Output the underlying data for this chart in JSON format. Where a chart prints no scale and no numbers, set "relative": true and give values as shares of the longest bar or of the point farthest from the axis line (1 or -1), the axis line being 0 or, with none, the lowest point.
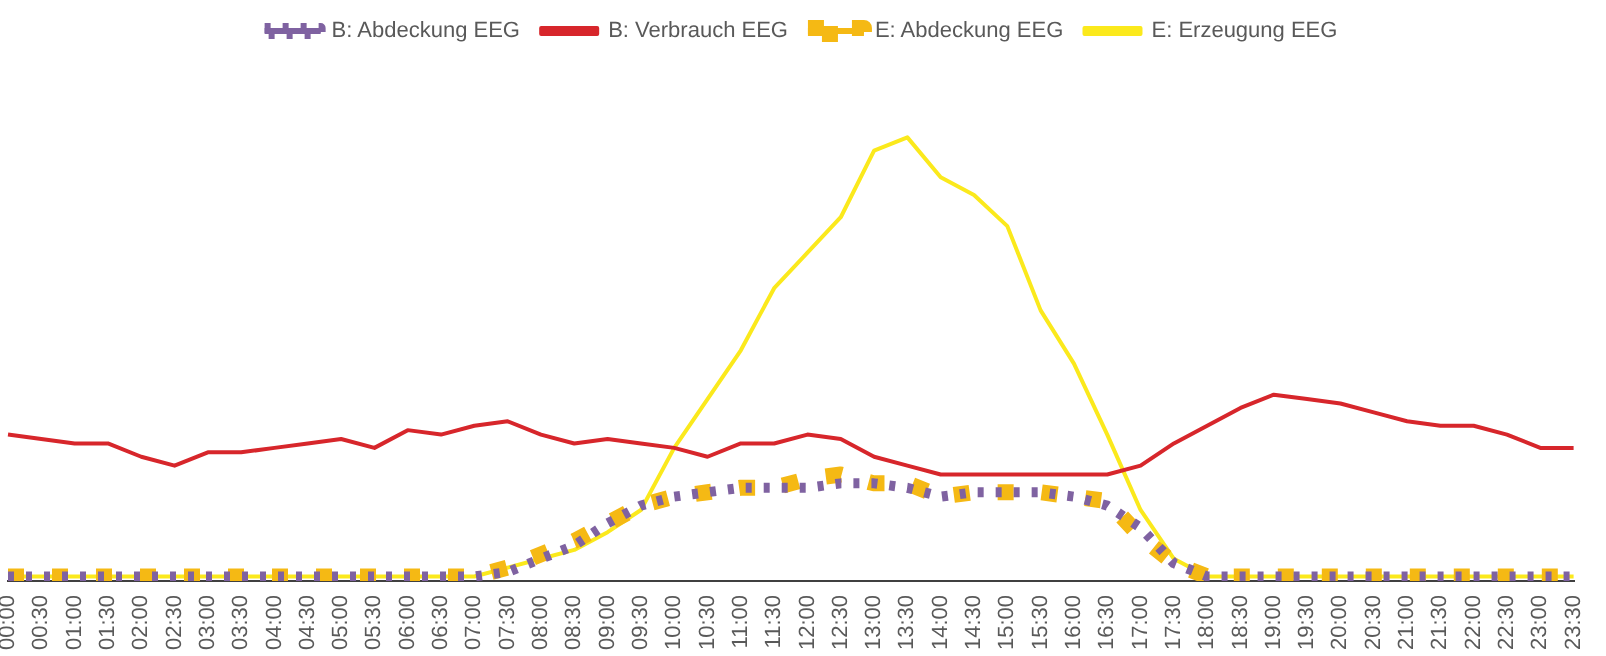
{
  "chart_data": {
    "type": "line",
    "relative": true,
    "legend": "top",
    "grid": false,
    "marker": "none",
    "categories": [
      "00:00",
      "00:30",
      "01:00",
      "01:30",
      "02:00",
      "02:30",
      "03:00",
      "03:30",
      "04:00",
      "04:30",
      "05:00",
      "05:30",
      "06:00",
      "06:30",
      "07:00",
      "07:30",
      "08:00",
      "08:30",
      "09:00",
      "09:30",
      "10:00",
      "10:30",
      "11:00",
      "11:30",
      "12:00",
      "12:30",
      "13:00",
      "13:30",
      "14:00",
      "14:30",
      "15:00",
      "15:30",
      "16:00",
      "16:30",
      "17:00",
      "17:30",
      "18:00",
      "18:30",
      "19:00",
      "19:30",
      "20:00",
      "20:30",
      "21:00",
      "21:30",
      "22:00",
      "22:30",
      "23:00",
      "23:30"
    ],
    "series": [
      {
        "name": "B: Abdeckung EEG",
        "color": "#7f62a1",
        "line_style": "dotted",
        "values": [
          0.01,
          0.01,
          0.01,
          0.01,
          0.01,
          0.01,
          0.01,
          0.01,
          0.01,
          0.01,
          0.01,
          0.01,
          0.01,
          0.01,
          0.01,
          0.02,
          0.05,
          0.08,
          0.13,
          0.17,
          0.19,
          0.2,
          0.21,
          0.21,
          0.21,
          0.22,
          0.22,
          0.21,
          0.19,
          0.2,
          0.2,
          0.2,
          0.19,
          0.17,
          0.12,
          0.04,
          0.01,
          0.01,
          0.01,
          0.01,
          0.01,
          0.01,
          0.01,
          0.01,
          0.01,
          0.01,
          0.01,
          0.01
        ]
      },
      {
        "name": "B: Verbrauch EEG",
        "color": "#d7262b",
        "line_style": "solid",
        "values": [
          0.33,
          0.32,
          0.31,
          0.31,
          0.28,
          0.26,
          0.29,
          0.29,
          0.3,
          0.31,
          0.32,
          0.3,
          0.34,
          0.33,
          0.35,
          0.36,
          0.33,
          0.31,
          0.32,
          0.31,
          0.3,
          0.28,
          0.31,
          0.31,
          0.33,
          0.32,
          0.28,
          0.26,
          0.24,
          0.24,
          0.24,
          0.24,
          0.24,
          0.24,
          0.26,
          0.31,
          0.35,
          0.39,
          0.42,
          0.41,
          0.4,
          0.38,
          0.36,
          0.35,
          0.35,
          0.33,
          0.3,
          0.3
        ]
      },
      {
        "name": "E: Abdeckung EEG",
        "color": "#f5b914",
        "line_style": "dashed",
        "values": [
          0.01,
          0.01,
          0.01,
          0.01,
          0.01,
          0.01,
          0.01,
          0.01,
          0.01,
          0.01,
          0.01,
          0.01,
          0.01,
          0.01,
          0.01,
          0.03,
          0.06,
          0.09,
          0.13,
          0.17,
          0.19,
          0.2,
          0.21,
          0.21,
          0.23,
          0.24,
          0.22,
          0.22,
          0.19,
          0.2,
          0.2,
          0.2,
          0.19,
          0.18,
          0.1,
          0.04,
          0.01,
          0.01,
          0.01,
          0.01,
          0.01,
          0.01,
          0.01,
          0.01,
          0.01,
          0.01,
          0.01,
          0.01
        ]
      },
      {
        "name": "E: Erzeugung EEG",
        "color": "#fbe91c",
        "line_style": "solid",
        "values": [
          0.01,
          0.01,
          0.01,
          0.01,
          0.01,
          0.01,
          0.01,
          0.01,
          0.01,
          0.01,
          0.01,
          0.01,
          0.01,
          0.01,
          0.01,
          0.03,
          0.05,
          0.07,
          0.11,
          0.16,
          0.3,
          0.41,
          0.52,
          0.66,
          0.74,
          0.82,
          0.97,
          1,
          0.91,
          0.87,
          0.8,
          0.61,
          0.49,
          0.33,
          0.16,
          0.05,
          0.01,
          0.01,
          0.01,
          0.01,
          0.01,
          0.01,
          0.01,
          0.01,
          0.01,
          0.01,
          0.01,
          0.01
        ]
      }
    ]
  }
}
